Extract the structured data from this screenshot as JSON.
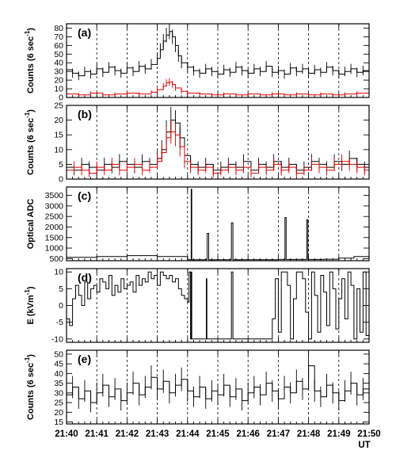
{
  "chart_data": [
    {
      "type": "line",
      "panel_label": "(a)",
      "ylabel_main": "Counts (6 sec",
      "ylabel_sup": "-1",
      "ylabel_end": ")",
      "ylim": [
        0,
        85
      ],
      "yticks": [
        0,
        10,
        20,
        30,
        40,
        50,
        60,
        70,
        80
      ],
      "xlim": [
        0,
        10
      ],
      "grid": true,
      "error_bars": true,
      "series": [
        {
          "color": "#000000",
          "t": [
            0,
            0.2,
            0.4,
            0.6,
            0.8,
            1.0,
            1.2,
            1.4,
            1.6,
            1.8,
            2.0,
            2.2,
            2.4,
            2.6,
            2.8,
            3.0,
            3.1,
            3.2,
            3.3,
            3.4,
            3.5,
            3.6,
            3.7,
            3.8,
            4.0,
            4.2,
            4.4,
            4.6,
            4.8,
            5.0,
            5.2,
            5.4,
            5.6,
            5.8,
            6.0,
            6.2,
            6.4,
            6.6,
            6.8,
            7.0,
            7.2,
            7.4,
            7.6,
            7.8,
            8.0,
            8.2,
            8.4,
            8.6,
            8.8,
            9.0,
            9.2,
            9.4,
            9.6,
            9.8,
            10.0
          ],
          "values": [
            32,
            28,
            25,
            30,
            27,
            33,
            29,
            35,
            31,
            28,
            34,
            30,
            36,
            33,
            38,
            45,
            55,
            65,
            72,
            76,
            70,
            60,
            48,
            40,
            35,
            31,
            28,
            33,
            30,
            27,
            32,
            29,
            35,
            31,
            28,
            33,
            30,
            36,
            29,
            31,
            27,
            34,
            30,
            33,
            28,
            32,
            29,
            35,
            31,
            27,
            30,
            33,
            29,
            31,
            28
          ]
        },
        {
          "color": "#e00000",
          "t": [
            0,
            0.4,
            0.8,
            1.2,
            1.6,
            2.0,
            2.4,
            2.8,
            3.0,
            3.2,
            3.3,
            3.4,
            3.5,
            3.6,
            3.8,
            4.0,
            4.4,
            4.8,
            5.2,
            5.6,
            6.0,
            6.4,
            6.8,
            7.2,
            7.6,
            8.0,
            8.4,
            8.8,
            9.2,
            9.6,
            10.0
          ],
          "values": [
            4,
            3,
            5,
            3,
            4,
            5,
            4,
            6,
            9,
            13,
            17,
            18,
            15,
            11,
            7,
            5,
            4,
            3,
            4,
            3,
            4,
            3,
            4,
            3,
            4,
            3,
            4,
            3,
            4,
            5,
            3
          ]
        }
      ]
    },
    {
      "type": "line",
      "panel_label": "(b)",
      "ylabel_main": "Counts (6 sec",
      "ylabel_sup": "-1",
      "ylabel_end": ")",
      "ylim": [
        0,
        25
      ],
      "yticks": [
        0,
        5,
        10,
        15,
        20,
        25
      ],
      "xlim": [
        0,
        10
      ],
      "grid": true,
      "error_bars": true,
      "series": [
        {
          "color": "#000000",
          "t": [
            0,
            0.25,
            0.5,
            0.75,
            1.0,
            1.25,
            1.5,
            1.75,
            2.0,
            2.25,
            2.5,
            2.75,
            3.0,
            3.15,
            3.3,
            3.45,
            3.6,
            3.75,
            3.9,
            4.1,
            4.35,
            4.6,
            4.85,
            5.1,
            5.35,
            5.6,
            5.85,
            6.1,
            6.35,
            6.6,
            6.85,
            7.1,
            7.35,
            7.6,
            7.85,
            8.1,
            8.35,
            8.6,
            8.85,
            9.1,
            9.35,
            9.6,
            9.85,
            10.0
          ],
          "values": [
            4,
            3,
            5,
            4,
            3,
            5,
            4,
            6,
            5,
            4,
            6,
            5,
            7,
            10,
            16,
            20,
            19,
            14,
            8,
            5,
            4,
            5,
            3,
            4,
            5,
            4,
            6,
            3,
            5,
            4,
            6,
            4,
            5,
            3,
            4,
            6,
            5,
            4,
            6,
            5,
            7,
            5,
            4,
            3
          ]
        },
        {
          "color": "#e00000",
          "t": [
            0,
            0.25,
            0.5,
            0.75,
            1.0,
            1.25,
            1.5,
            1.75,
            2.0,
            2.25,
            2.5,
            2.75,
            3.0,
            3.15,
            3.3,
            3.45,
            3.6,
            3.75,
            3.9,
            4.1,
            4.35,
            4.6,
            4.85,
            5.1,
            5.35,
            5.6,
            5.85,
            6.1,
            6.35,
            6.6,
            6.85,
            7.1,
            7.35,
            7.6,
            7.85,
            8.1,
            8.35,
            8.6,
            8.85,
            9.1,
            9.35,
            9.6,
            9.85,
            10.0
          ],
          "values": [
            3,
            4,
            3,
            2,
            4,
            3,
            5,
            3,
            4,
            5,
            3,
            4,
            6,
            9,
            14,
            16,
            15,
            11,
            6,
            4,
            3,
            4,
            2,
            3,
            4,
            3,
            4,
            2,
            4,
            3,
            5,
            3,
            4,
            2,
            3,
            5,
            4,
            3,
            5,
            6,
            5,
            4,
            3,
            2
          ]
        }
      ]
    },
    {
      "type": "line",
      "panel_label": "(c)",
      "ylabel_main": "Optical ADC",
      "ylim": [
        400,
        3900
      ],
      "yticks": [
        500,
        1000,
        1500,
        2000,
        2500,
        3000,
        3500
      ],
      "xlim": [
        0,
        10
      ],
      "grid": true,
      "error_bars": false,
      "series": [
        {
          "color": "#000000",
          "t": [
            0,
            1.0,
            2.0,
            3.0,
            3.9,
            4.0,
            4.1,
            4.12,
            4.14,
            4.2,
            4.6,
            4.65,
            4.7,
            5.0,
            5.4,
            5.45,
            5.5,
            6.0,
            7.0,
            7.18,
            7.22,
            7.26,
            7.6,
            7.9,
            7.94,
            7.98,
            8.5,
            9.0,
            9.5,
            10.0
          ],
          "values": [
            560,
            600,
            640,
            600,
            600,
            450,
            440,
            3800,
            440,
            450,
            460,
            1700,
            450,
            450,
            460,
            2200,
            450,
            450,
            460,
            460,
            2450,
            460,
            460,
            460,
            2350,
            460,
            470,
            520,
            600,
            650
          ]
        }
      ]
    },
    {
      "type": "line",
      "panel_label": "(d)",
      "ylabel_main": "E (kVm",
      "ylabel_sup": "-1",
      "ylabel_end": ")",
      "ylim": [
        -11,
        11
      ],
      "yticks": [
        -10,
        -5,
        0,
        5,
        10
      ],
      "xlim": [
        0,
        10
      ],
      "grid": true,
      "error_bars": false,
      "series": [
        {
          "color": "#000000",
          "t": [
            0,
            0.1,
            0.2,
            0.3,
            0.4,
            0.5,
            0.6,
            0.7,
            0.8,
            0.9,
            1.0,
            1.1,
            1.2,
            1.3,
            1.4,
            1.5,
            1.6,
            1.7,
            1.8,
            1.9,
            2.0,
            2.1,
            2.2,
            2.3,
            2.4,
            2.5,
            2.6,
            2.7,
            2.8,
            2.9,
            3.0,
            3.1,
            3.2,
            3.3,
            3.4,
            3.5,
            3.6,
            3.7,
            3.8,
            3.9,
            4.0,
            4.05,
            4.1,
            4.12,
            4.14,
            4.3,
            4.6,
            4.62,
            4.64,
            4.8,
            5.0,
            5.4,
            5.45,
            5.5,
            5.8,
            6.2,
            6.6,
            6.8,
            6.9,
            7.0,
            7.1,
            7.2,
            7.3,
            7.4,
            7.5,
            7.6,
            7.7,
            7.8,
            7.9,
            8.0,
            8.1,
            8.2,
            8.3,
            8.4,
            8.5,
            8.6,
            8.7,
            8.8,
            8.9,
            9.0,
            9.1,
            9.2,
            9.3,
            9.4,
            9.5,
            9.6,
            9.7,
            9.8,
            9.9,
            10.0
          ],
          "values": [
            -4,
            -6,
            2,
            6,
            3,
            0,
            7,
            2,
            5,
            6,
            4,
            8,
            7,
            5,
            9,
            3,
            6,
            4,
            8,
            5,
            6,
            7,
            4,
            9,
            6,
            8,
            7,
            10,
            8,
            9,
            6,
            10,
            9,
            8,
            9,
            7,
            8,
            5,
            3,
            2,
            1,
            10,
            -10,
            10,
            -10,
            -10,
            -10,
            8,
            -10,
            -10,
            -10,
            -10,
            10,
            -10,
            -10,
            -10,
            -10,
            -4,
            8,
            -8,
            10,
            10,
            6,
            -10,
            2,
            10,
            10,
            8,
            -2,
            -10,
            10,
            3,
            -8,
            9,
            4,
            -6,
            10,
            5,
            -7,
            2,
            8,
            -4,
            10,
            6,
            -10,
            5,
            -8,
            10,
            -9,
            -7
          ]
        }
      ]
    },
    {
      "type": "line",
      "panel_label": "(e)",
      "ylabel_main": "Counts (6 sec",
      "ylabel_sup": "-1",
      "ylabel_end": ")",
      "ylim": [
        14,
        52
      ],
      "yticks": [
        15,
        20,
        25,
        30,
        35,
        40,
        45,
        50
      ],
      "xlim": [
        0,
        10
      ],
      "grid": true,
      "error_bars": true,
      "xtick_labels": [
        "21:40",
        "21:41",
        "21:42",
        "21:43",
        "21:44",
        "21:45",
        "21:46",
        "21:47",
        "21:48",
        "21:49",
        "21:50"
      ],
      "xunit": "UT",
      "series": [
        {
          "color": "#000000",
          "t": [
            0,
            0.2,
            0.4,
            0.6,
            0.8,
            1.0,
            1.2,
            1.4,
            1.6,
            1.8,
            2.0,
            2.2,
            2.4,
            2.6,
            2.8,
            3.0,
            3.2,
            3.4,
            3.6,
            3.8,
            4.0,
            4.2,
            4.4,
            4.6,
            4.8,
            5.0,
            5.2,
            5.4,
            5.6,
            5.8,
            6.0,
            6.2,
            6.4,
            6.6,
            6.8,
            7.0,
            7.2,
            7.4,
            7.6,
            7.8,
            8.0,
            8.2,
            8.4,
            8.6,
            8.8,
            9.0,
            9.2,
            9.4,
            9.6,
            9.8,
            10.0
          ],
          "values": [
            29,
            33,
            27,
            31,
            25,
            30,
            34,
            28,
            32,
            26,
            30,
            35,
            29,
            33,
            38,
            32,
            36,
            30,
            34,
            37,
            31,
            28,
            33,
            27,
            31,
            29,
            34,
            28,
            32,
            26,
            30,
            33,
            29,
            35,
            31,
            27,
            33,
            30,
            36,
            32,
            44,
            31,
            28,
            34,
            30,
            26,
            31,
            35,
            29,
            32,
            28
          ]
        }
      ]
    }
  ]
}
